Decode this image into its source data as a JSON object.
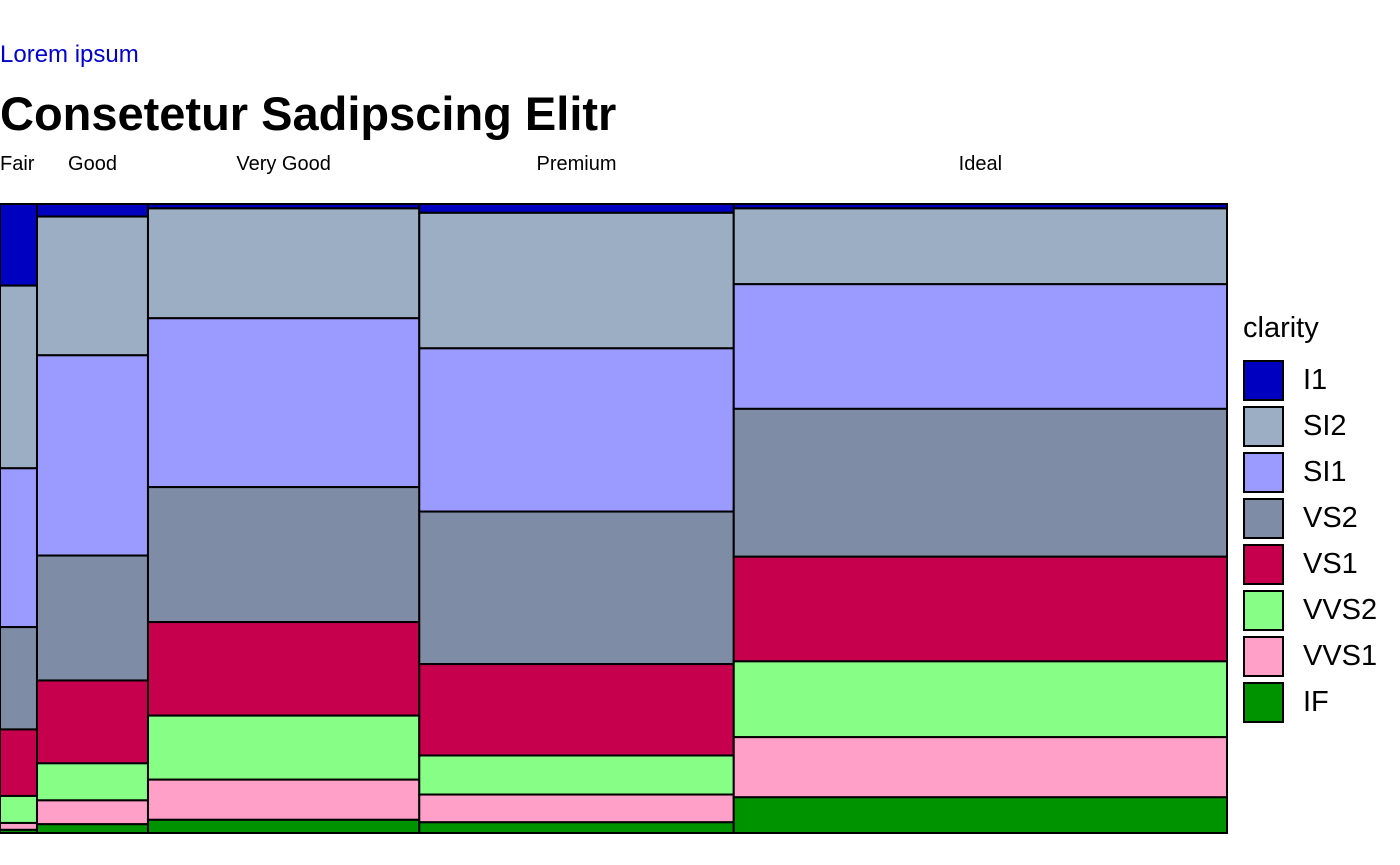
{
  "header": {
    "subtitle": "Lorem ipsum",
    "title": "Consetetur Sadipscing Elitr"
  },
  "colors": {
    "I1": "#0000C0",
    "SI2": "#9CAEC3",
    "SI1": "#9B9BFF",
    "VS2": "#7F8CA5",
    "VS1": "#C7004E",
    "VVS2": "#87FF87",
    "VVS1": "#FFA0C8",
    "IF": "#009300"
  },
  "chart_data": {
    "type": "mosaic",
    "x_variable": "cut",
    "fill_variable": "clarity",
    "categories": [
      "Fair",
      "Good",
      "Very Good",
      "Premium",
      "Ideal"
    ],
    "category_share": [
      0.03,
      0.09,
      0.22,
      0.255,
      0.4
    ],
    "clarity_levels": [
      "I1",
      "SI2",
      "SI1",
      "VS2",
      "VS1",
      "VVS2",
      "VVS1",
      "IF"
    ],
    "proportions": {
      "Fair": [
        0.13,
        0.291,
        0.253,
        0.163,
        0.106,
        0.043,
        0.011,
        0.005
      ],
      "Good": [
        0.02,
        0.221,
        0.319,
        0.199,
        0.132,
        0.059,
        0.038,
        0.014
      ],
      "Very Good": [
        0.007,
        0.175,
        0.269,
        0.215,
        0.149,
        0.102,
        0.064,
        0.021
      ],
      "Premium": [
        0.014,
        0.215,
        0.259,
        0.242,
        0.145,
        0.062,
        0.044,
        0.017
      ],
      "Ideal": [
        0.007,
        0.121,
        0.199,
        0.236,
        0.167,
        0.121,
        0.096,
        0.057
      ]
    },
    "legend": {
      "title": "clarity",
      "position": "right",
      "entries": [
        "I1",
        "SI2",
        "SI1",
        "VS2",
        "VS1",
        "VVS2",
        "VVS1",
        "IF"
      ]
    },
    "grid": false
  }
}
